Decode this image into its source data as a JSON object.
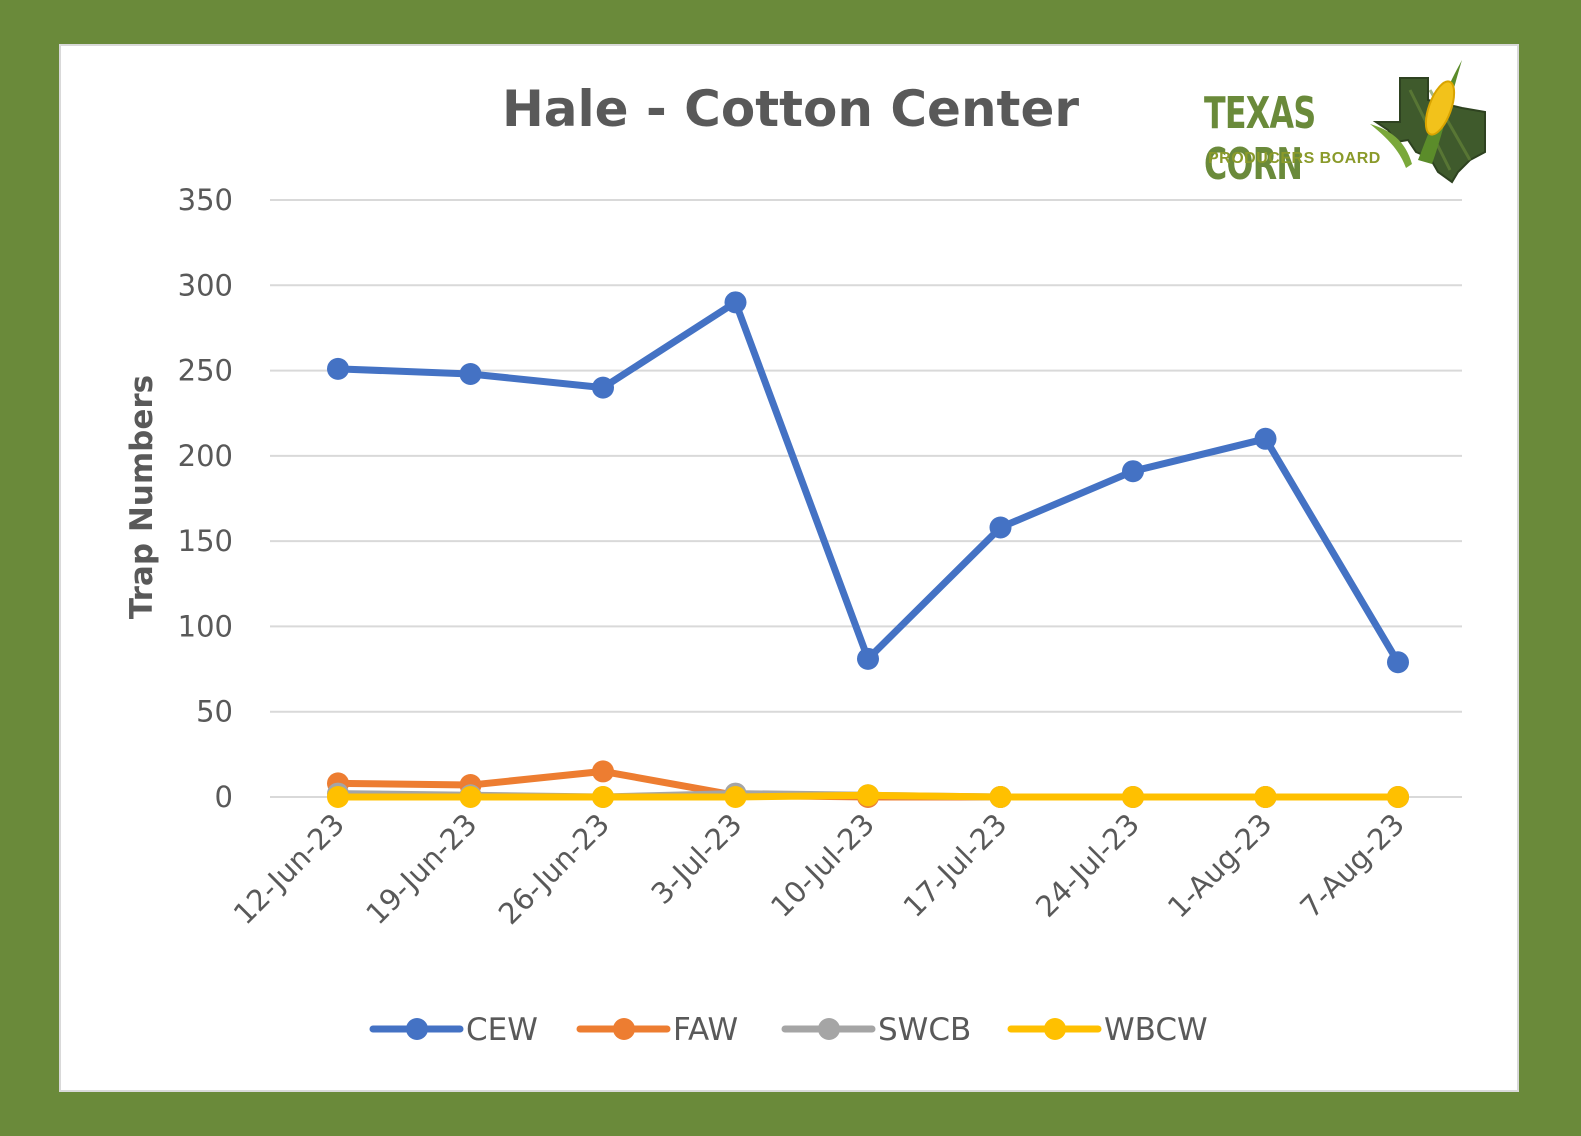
{
  "chart_data": {
    "type": "line",
    "title": "Hale - Cotton Center",
    "xlabel": "",
    "ylabel": "Trap Numbers",
    "categories": [
      "12-Jun-23",
      "19-Jun-23",
      "26-Jun-23",
      "3-Jul-23",
      "10-Jul-23",
      "17-Jul-23",
      "24-Jul-23",
      "1-Aug-23",
      "7-Aug-23"
    ],
    "ylim": [
      0,
      350
    ],
    "yticks": [
      0,
      50,
      100,
      150,
      200,
      250,
      300,
      350
    ],
    "grid": true,
    "legend_position": "bottom",
    "series": [
      {
        "name": "CEW",
        "color": "#4472c4",
        "values": [
          251,
          248,
          240,
          290,
          81,
          158,
          191,
          210,
          79
        ]
      },
      {
        "name": "FAW",
        "color": "#ed7d31",
        "values": [
          8,
          7,
          15,
          1,
          0,
          0,
          0,
          0,
          0
        ]
      },
      {
        "name": "SWCB",
        "color": "#a5a5a5",
        "values": [
          2,
          1,
          0,
          2,
          1,
          0,
          0,
          0,
          0
        ]
      },
      {
        "name": "WBCW",
        "color": "#ffc000",
        "values": [
          0,
          0,
          0,
          0,
          1,
          0,
          0,
          0,
          0
        ]
      }
    ]
  },
  "logo": {
    "line1": "TEXAS CORN",
    "line2": "PRODUCERS BOARD"
  }
}
